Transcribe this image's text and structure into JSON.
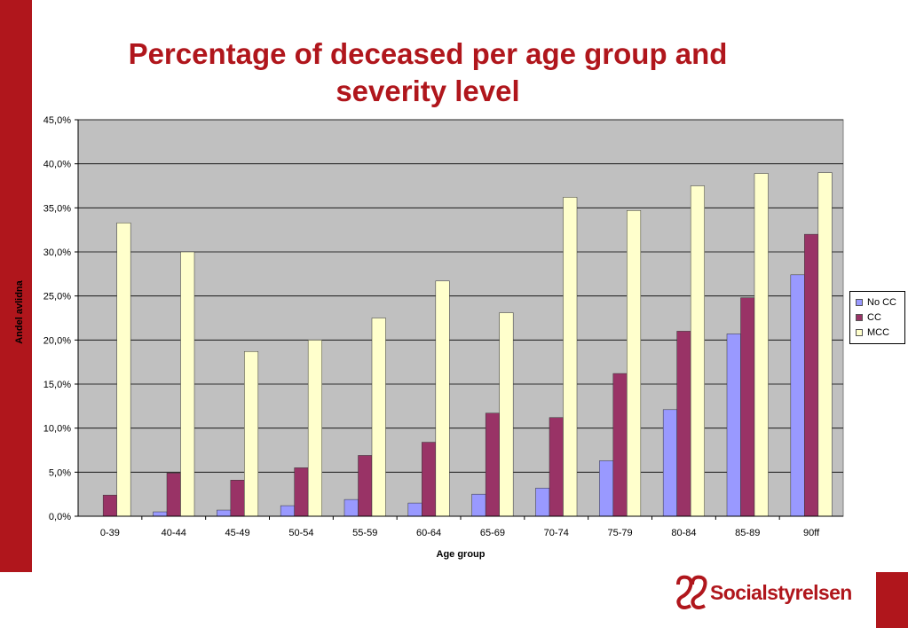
{
  "slide": {
    "title_line1": "Percentage of deceased per age group and",
    "title_line2": "severity level",
    "logo_text": "Socialstyrelsen",
    "brand_color": "#b0161c"
  },
  "chart_data": {
    "type": "bar",
    "title": "",
    "xlabel": "Age group",
    "ylabel": "Andel avlidna",
    "ylim": [
      0,
      45
    ],
    "y_ticks": [
      "0,0%",
      "5,0%",
      "10,0%",
      "15,0%",
      "20,0%",
      "25,0%",
      "30,0%",
      "35,0%",
      "40,0%",
      "45,0%"
    ],
    "categories": [
      "0-39",
      "40-44",
      "45-49",
      "50-54",
      "55-59",
      "60-64",
      "65-69",
      "70-74",
      "75-79",
      "80-84",
      "85-89",
      "90ff"
    ],
    "series": [
      {
        "name": "No CC",
        "color": "#9999ff",
        "values": [
          0.0,
          0.5,
          0.7,
          1.2,
          1.9,
          1.5,
          2.5,
          3.2,
          6.3,
          12.1,
          20.7,
          27.4
        ]
      },
      {
        "name": "CC",
        "color": "#993366",
        "values": [
          2.4,
          4.9,
          4.1,
          5.5,
          6.9,
          8.4,
          11.7,
          11.2,
          16.2,
          21.0,
          24.8,
          32.0
        ]
      },
      {
        "name": "MCC",
        "color": "#ffffcc",
        "values": [
          33.3,
          30.0,
          18.7,
          20.0,
          22.5,
          26.7,
          23.1,
          36.2,
          34.7,
          37.5,
          38.9,
          39.0
        ]
      }
    ],
    "grid": true,
    "legend": "right",
    "plot_background": "#c0c0c0"
  }
}
